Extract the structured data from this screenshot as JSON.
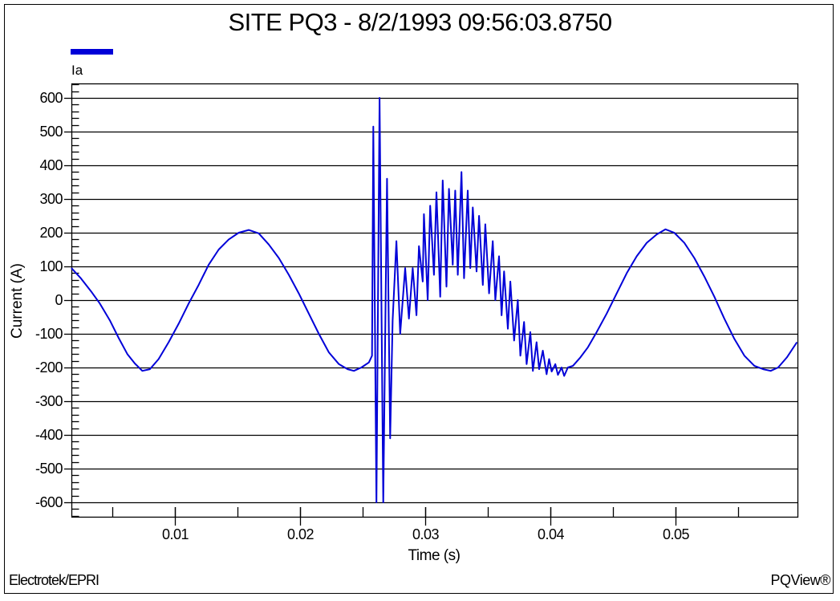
{
  "chart_data": {
    "type": "line",
    "title": "SITE PQ3 - 8/2/1993 09:56:03.8750",
    "xlabel": "Time (s)",
    "ylabel": "Current (A)",
    "xlim": [
      0.00173,
      0.0597
    ],
    "ylim": [
      -640,
      640
    ],
    "x_ticks": [
      0.01,
      0.02,
      0.03,
      0.04,
      0.05
    ],
    "x_tick_labels": [
      "0.01",
      "0.02",
      "0.03",
      "0.04",
      "0.05"
    ],
    "x_minor_step": 0.005,
    "y_ticks": [
      600,
      500,
      400,
      300,
      200,
      100,
      0,
      -100,
      -200,
      -300,
      -400,
      -500,
      -600
    ],
    "y_tick_labels": [
      "600",
      "500",
      "400",
      "300",
      "200",
      "100",
      "0",
      "-100",
      "-200",
      "-300",
      "-400",
      "-500",
      "-600"
    ],
    "y_minor_step": 20,
    "grid": {
      "horizontal": true,
      "vertical": false
    },
    "legend": {
      "position": "top-left",
      "entries": [
        {
          "name": "Ia",
          "color": "#0000d8"
        }
      ]
    },
    "series": [
      {
        "name": "Ia",
        "color": "#0000d8",
        "points": [
          [
            0.00173,
            95
          ],
          [
            0.0025,
            64
          ],
          [
            0.0033,
            26
          ],
          [
            0.004,
            -10
          ],
          [
            0.0048,
            -60
          ],
          [
            0.0055,
            -112
          ],
          [
            0.0062,
            -160
          ],
          [
            0.0068,
            -188
          ],
          [
            0.0074,
            -210
          ],
          [
            0.008,
            -205
          ],
          [
            0.0087,
            -175
          ],
          [
            0.0095,
            -125
          ],
          [
            0.0103,
            -70
          ],
          [
            0.0111,
            -10
          ],
          [
            0.0119,
            45
          ],
          [
            0.0127,
            105
          ],
          [
            0.0135,
            150
          ],
          [
            0.0143,
            180
          ],
          [
            0.0151,
            200
          ],
          [
            0.0159,
            208
          ],
          [
            0.0167,
            198
          ],
          [
            0.0175,
            165
          ],
          [
            0.0183,
            125
          ],
          [
            0.0191,
            75
          ],
          [
            0.0199,
            20
          ],
          [
            0.0207,
            -40
          ],
          [
            0.0215,
            -100
          ],
          [
            0.0223,
            -155
          ],
          [
            0.0231,
            -190
          ],
          [
            0.0238,
            -205
          ],
          [
            0.0243,
            -210
          ],
          [
            0.0249,
            -200
          ],
          [
            0.0255,
            -185
          ],
          [
            0.02575,
            -165
          ],
          [
            0.02585,
            515
          ],
          [
            0.0261,
            -600
          ],
          [
            0.02635,
            600
          ],
          [
            0.02665,
            -600
          ],
          [
            0.02695,
            360
          ],
          [
            0.0272,
            -410
          ],
          [
            0.0274,
            -60
          ],
          [
            0.0277,
            175
          ],
          [
            0.028,
            -100
          ],
          [
            0.0284,
            95
          ],
          [
            0.0287,
            -55
          ],
          [
            0.029,
            95
          ],
          [
            0.0293,
            -45
          ],
          [
            0.0295,
            160
          ],
          [
            0.0298,
            55
          ],
          [
            0.0299,
            255
          ],
          [
            0.0302,
            0
          ],
          [
            0.0304,
            280
          ],
          [
            0.0307,
            75
          ],
          [
            0.0309,
            320
          ],
          [
            0.0312,
            10
          ],
          [
            0.0314,
            355
          ],
          [
            0.0317,
            40
          ],
          [
            0.0319,
            330
          ],
          [
            0.0322,
            105
          ],
          [
            0.0324,
            325
          ],
          [
            0.0326,
            75
          ],
          [
            0.0329,
            380
          ],
          [
            0.0331,
            65
          ],
          [
            0.0334,
            325
          ],
          [
            0.0336,
            95
          ],
          [
            0.0338,
            275
          ],
          [
            0.0341,
            85
          ],
          [
            0.0343,
            250
          ],
          [
            0.0346,
            45
          ],
          [
            0.0348,
            225
          ],
          [
            0.0351,
            20
          ],
          [
            0.0354,
            175
          ],
          [
            0.0356,
            0
          ],
          [
            0.0359,
            130
          ],
          [
            0.0361,
            -45
          ],
          [
            0.0363,
            85
          ],
          [
            0.0366,
            -85
          ],
          [
            0.0368,
            55
          ],
          [
            0.0371,
            -120
          ],
          [
            0.0374,
            0
          ],
          [
            0.0376,
            -165
          ],
          [
            0.0379,
            -65
          ],
          [
            0.0381,
            -190
          ],
          [
            0.0384,
            -95
          ],
          [
            0.0386,
            -210
          ],
          [
            0.0389,
            -125
          ],
          [
            0.0391,
            -205
          ],
          [
            0.0394,
            -150
          ],
          [
            0.0397,
            -220
          ],
          [
            0.0399,
            -175
          ],
          [
            0.0401,
            -212
          ],
          [
            0.0404,
            -190
          ],
          [
            0.0406,
            -222
          ],
          [
            0.0409,
            -200
          ],
          [
            0.0411,
            -225
          ],
          [
            0.0414,
            -200
          ],
          [
            0.0418,
            -195
          ],
          [
            0.0424,
            -170
          ],
          [
            0.043,
            -140
          ],
          [
            0.0437,
            -95
          ],
          [
            0.0445,
            -40
          ],
          [
            0.0453,
            20
          ],
          [
            0.0461,
            80
          ],
          [
            0.0469,
            130
          ],
          [
            0.0477,
            170
          ],
          [
            0.0485,
            195
          ],
          [
            0.0492,
            210
          ],
          [
            0.0499,
            200
          ],
          [
            0.0507,
            170
          ],
          [
            0.0515,
            125
          ],
          [
            0.0523,
            70
          ],
          [
            0.0531,
            10
          ],
          [
            0.0539,
            -55
          ],
          [
            0.0547,
            -115
          ],
          [
            0.0555,
            -165
          ],
          [
            0.0563,
            -195
          ],
          [
            0.057,
            -205
          ],
          [
            0.0576,
            -210
          ],
          [
            0.0582,
            -200
          ],
          [
            0.0589,
            -170
          ],
          [
            0.0597,
            -125
          ]
        ]
      }
    ]
  },
  "footer": {
    "left": "Electrotek/EPRI",
    "right": "PQView®"
  }
}
